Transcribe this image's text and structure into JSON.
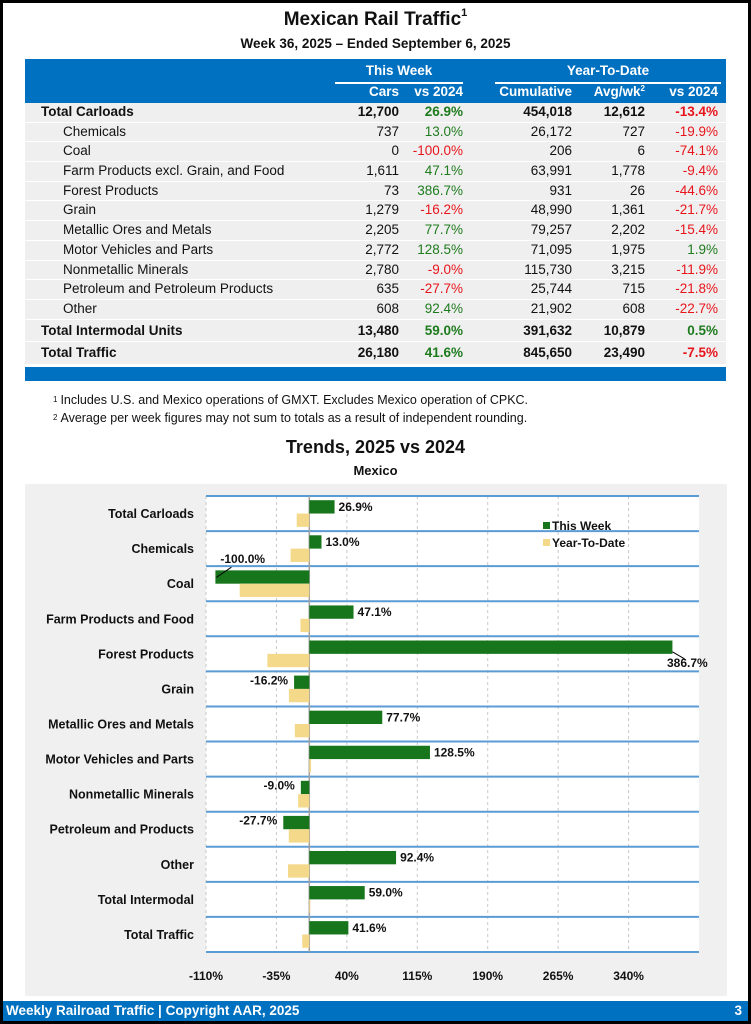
{
  "header": {
    "title": "Mexican Rail Traffic",
    "title_footnote": "1",
    "subtitle": "Week 36, 2025 – Ended September 6, 2025"
  },
  "table": {
    "groups": [
      {
        "label": "This Week"
      },
      {
        "label": "Year-To-Date"
      }
    ],
    "columns": [
      "Cars",
      "vs 2024",
      "Cumulative",
      "Avg/wk",
      "vs 2024"
    ],
    "avg_footnote": "2",
    "rows": [
      {
        "label": "Total Carloads",
        "cars": "12,700",
        "vs_week": "26.9%",
        "cumulative": "454,018",
        "avg_wk": "12,612",
        "vs_ytd": "-13.4%",
        "bold": true
      },
      {
        "label": "Chemicals",
        "cars": "737",
        "vs_week": "13.0%",
        "cumulative": "26,172",
        "avg_wk": "727",
        "vs_ytd": "-19.9%"
      },
      {
        "label": "Coal",
        "cars": "0",
        "vs_week": "-100.0%",
        "cumulative": "206",
        "avg_wk": "6",
        "vs_ytd": "-74.1%"
      },
      {
        "label": "Farm Products excl. Grain, and Food",
        "cars": "1,611",
        "vs_week": "47.1%",
        "cumulative": "63,991",
        "avg_wk": "1,778",
        "vs_ytd": "-9.4%"
      },
      {
        "label": "Forest Products",
        "cars": "73",
        "vs_week": "386.7%",
        "cumulative": "931",
        "avg_wk": "26",
        "vs_ytd": "-44.6%"
      },
      {
        "label": "Grain",
        "cars": "1,279",
        "vs_week": "-16.2%",
        "cumulative": "48,990",
        "avg_wk": "1,361",
        "vs_ytd": "-21.7%"
      },
      {
        "label": "Metallic Ores and Metals",
        "cars": "2,205",
        "vs_week": "77.7%",
        "cumulative": "79,257",
        "avg_wk": "2,202",
        "vs_ytd": "-15.4%"
      },
      {
        "label": "Motor Vehicles and Parts",
        "cars": "2,772",
        "vs_week": "128.5%",
        "cumulative": "71,095",
        "avg_wk": "1,975",
        "vs_ytd": "1.9%"
      },
      {
        "label": "Nonmetallic Minerals",
        "cars": "2,780",
        "vs_week": "-9.0%",
        "cumulative": "115,730",
        "avg_wk": "3,215",
        "vs_ytd": "-11.9%"
      },
      {
        "label": "Petroleum and Petroleum Products",
        "cars": "635",
        "vs_week": "-27.7%",
        "cumulative": "25,744",
        "avg_wk": "715",
        "vs_ytd": "-21.8%"
      },
      {
        "label": "Other",
        "cars": "608",
        "vs_week": "92.4%",
        "cumulative": "21,902",
        "avg_wk": "608",
        "vs_ytd": "-22.7%"
      },
      {
        "label": "Total Intermodal Units",
        "cars": "13,480",
        "vs_week": "59.0%",
        "cumulative": "391,632",
        "avg_wk": "10,879",
        "vs_ytd": "0.5%",
        "bold": true
      },
      {
        "label": "Total Traffic",
        "cars": "26,180",
        "vs_week": "41.6%",
        "cumulative": "845,650",
        "avg_wk": "23,490",
        "vs_ytd": "-7.5%",
        "bold": true
      }
    ]
  },
  "notes": [
    {
      "mark": "1",
      "text": "Includes U.S. and Mexico operations of GMXT. Excludes Mexico operation of CPKC."
    },
    {
      "mark": "2",
      "text": "Average per week figures may not sum to totals as a result of independent rounding."
    }
  ],
  "colors": {
    "brand_blue": "#0070c0",
    "positive": "#1e7b1e",
    "negative": "#e8141b",
    "this_week_bar": "#17751c",
    "ytd_bar": "#f4d98a"
  },
  "chart_data": {
    "type": "bar",
    "orientation": "horizontal",
    "title": "Trends, 2025 vs 2024",
    "subtitle": "Mexico",
    "categories": [
      "Total Carloads",
      "Chemicals",
      "Coal",
      "Farm Products and Food",
      "Forest Products",
      "Grain",
      "Metallic Ores and Metals",
      "Motor Vehicles and Parts",
      "Nonmetallic Minerals",
      "Petroleum and Products",
      "Other",
      "Total Intermodal",
      "Total Traffic"
    ],
    "series": [
      {
        "name": "This Week",
        "values": [
          26.9,
          13.0,
          -100.0,
          47.1,
          386.7,
          -16.2,
          77.7,
          128.5,
          -9.0,
          -27.7,
          92.4,
          59.0,
          41.6
        ],
        "labels": [
          "26.9%",
          "13.0%",
          "-100.0%",
          "47.1%",
          "386.7%",
          "-16.2%",
          "77.7%",
          "128.5%",
          "-9.0%",
          "-27.7%",
          "92.4%",
          "59.0%",
          "41.6%"
        ]
      },
      {
        "name": "Year-To-Date",
        "values": [
          -13.4,
          -19.9,
          -74.1,
          -9.4,
          -44.6,
          -21.7,
          -15.4,
          1.9,
          -11.9,
          -21.8,
          -22.7,
          0.5,
          -7.5
        ]
      }
    ],
    "xticks": [
      -110,
      -35,
      40,
      115,
      190,
      265,
      340
    ],
    "xtick_labels": [
      "-110%",
      "-35%",
      "40%",
      "115%",
      "190%",
      "265%",
      "340%"
    ],
    "xlim": [
      -110,
      415
    ],
    "xlabel": "",
    "ylabel": "",
    "grid": true,
    "legend": "top-right"
  },
  "footer": {
    "left": "Weekly Railroad Traffic | Copyright AAR, 2025",
    "page_number": "3"
  }
}
